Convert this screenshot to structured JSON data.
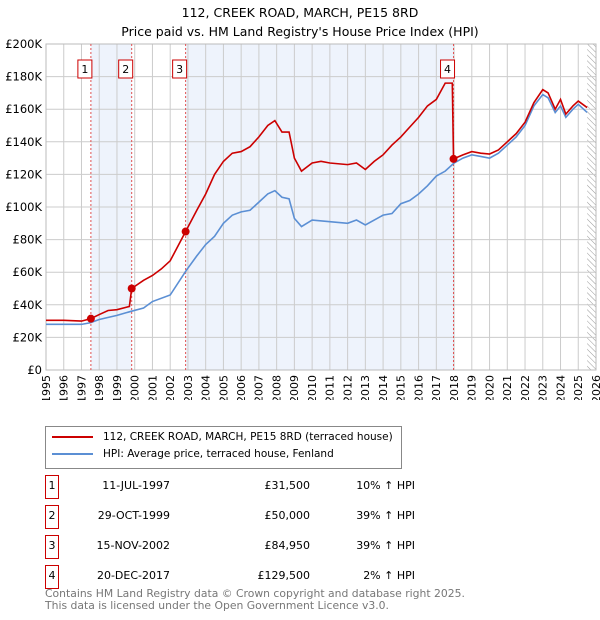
{
  "chart_data": {
    "type": "line",
    "title": "112, CREEK ROAD, MARCH, PE15 8RD",
    "subtitle": "Price paid vs. HM Land Registry's House Price Index (HPI)",
    "xlim": [
      1995,
      2026
    ],
    "ylim": [
      0,
      200000
    ],
    "x_ticks": [
      "1995",
      "1996",
      "1997",
      "1998",
      "1999",
      "2000",
      "2001",
      "2002",
      "2003",
      "2004",
      "2005",
      "2006",
      "2007",
      "2008",
      "2009",
      "2010",
      "2011",
      "2012",
      "2013",
      "2014",
      "2015",
      "2016",
      "2017",
      "2018",
      "2019",
      "2020",
      "2021",
      "2022",
      "2023",
      "2024",
      "2025",
      "2026"
    ],
    "y_ticks": [
      {
        "v": 0,
        "l": "£0"
      },
      {
        "v": 20000,
        "l": "£20K"
      },
      {
        "v": 40000,
        "l": "£40K"
      },
      {
        "v": 60000,
        "l": "£60K"
      },
      {
        "v": 80000,
        "l": "£80K"
      },
      {
        "v": 100000,
        "l": "£100K"
      },
      {
        "v": 120000,
        "l": "£120K"
      },
      {
        "v": 140000,
        "l": "£140K"
      },
      {
        "v": 160000,
        "l": "£160K"
      },
      {
        "v": 180000,
        "l": "£180K"
      },
      {
        "v": 200000,
        "l": "£200K"
      }
    ],
    "grid": true,
    "series": [
      {
        "name": "112, CREEK ROAD, MARCH, PE15 8RD (terraced house)",
        "color": "#cc0000",
        "points": [
          [
            1995,
            30500
          ],
          [
            1996,
            30500
          ],
          [
            1997,
            30000
          ],
          [
            1997.53,
            31500
          ],
          [
            1998,
            34000
          ],
          [
            1998.5,
            36500
          ],
          [
            1999,
            37000
          ],
          [
            1999.7,
            39000
          ],
          [
            1999.83,
            50000
          ],
          [
            2000.5,
            55000
          ],
          [
            2001,
            58000
          ],
          [
            2001.5,
            62000
          ],
          [
            2002,
            67000
          ],
          [
            2002.87,
            84950
          ],
          [
            2003.5,
            98000
          ],
          [
            2004,
            108000
          ],
          [
            2004.5,
            120000
          ],
          [
            2005,
            128000
          ],
          [
            2005.5,
            133000
          ],
          [
            2006,
            134000
          ],
          [
            2006.5,
            137000
          ],
          [
            2007,
            143000
          ],
          [
            2007.5,
            150000
          ],
          [
            2007.9,
            153000
          ],
          [
            2008.3,
            146000
          ],
          [
            2008.7,
            146000
          ],
          [
            2009,
            130000
          ],
          [
            2009.4,
            122000
          ],
          [
            2010,
            127000
          ],
          [
            2010.5,
            128000
          ],
          [
            2011,
            127000
          ],
          [
            2012,
            126000
          ],
          [
            2012.5,
            127000
          ],
          [
            2013,
            123000
          ],
          [
            2013.5,
            128000
          ],
          [
            2014,
            132000
          ],
          [
            2014.5,
            138000
          ],
          [
            2015,
            143000
          ],
          [
            2015.5,
            149000
          ],
          [
            2016,
            155000
          ],
          [
            2016.5,
            162000
          ],
          [
            2017,
            166000
          ],
          [
            2017.5,
            176000
          ],
          [
            2017.9,
            176000
          ],
          [
            2017.97,
            129500
          ],
          [
            2018.5,
            132000
          ],
          [
            2019,
            134000
          ],
          [
            2019.5,
            133000
          ],
          [
            2020,
            132500
          ],
          [
            2020.5,
            135000
          ],
          [
            2021,
            140000
          ],
          [
            2021.5,
            145000
          ],
          [
            2022,
            152000
          ],
          [
            2022.5,
            164000
          ],
          [
            2023,
            172000
          ],
          [
            2023.3,
            170000
          ],
          [
            2023.7,
            160000
          ],
          [
            2024,
            166000
          ],
          [
            2024.3,
            157000
          ],
          [
            2024.7,
            162000
          ],
          [
            2025,
            165000
          ],
          [
            2025.5,
            161000
          ]
        ]
      },
      {
        "name": "HPI: Average price, terraced house, Fenland",
        "color": "#5b8fd4",
        "points": [
          [
            1995,
            28000
          ],
          [
            1996,
            28000
          ],
          [
            1997,
            28000
          ],
          [
            1997.5,
            29000
          ],
          [
            1998,
            31000
          ],
          [
            1999,
            33500
          ],
          [
            1999.8,
            36000
          ],
          [
            2000.5,
            38000
          ],
          [
            2001,
            42000
          ],
          [
            2002,
            46000
          ],
          [
            2002.9,
            61000
          ],
          [
            2003.5,
            70000
          ],
          [
            2004,
            77000
          ],
          [
            2004.5,
            82000
          ],
          [
            2005,
            90000
          ],
          [
            2005.5,
            95000
          ],
          [
            2006,
            97000
          ],
          [
            2006.5,
            98000
          ],
          [
            2007,
            103000
          ],
          [
            2007.5,
            108000
          ],
          [
            2007.9,
            110000
          ],
          [
            2008.3,
            106000
          ],
          [
            2008.7,
            105000
          ],
          [
            2009,
            93000
          ],
          [
            2009.4,
            88000
          ],
          [
            2010,
            92000
          ],
          [
            2011,
            91000
          ],
          [
            2012,
            90000
          ],
          [
            2012.5,
            92000
          ],
          [
            2013,
            89000
          ],
          [
            2013.5,
            92000
          ],
          [
            2014,
            95000
          ],
          [
            2014.5,
            96000
          ],
          [
            2015,
            102000
          ],
          [
            2015.5,
            104000
          ],
          [
            2016,
            108000
          ],
          [
            2016.5,
            113000
          ],
          [
            2017,
            119000
          ],
          [
            2017.5,
            122000
          ],
          [
            2018,
            127000
          ],
          [
            2018.5,
            130000
          ],
          [
            2019,
            132000
          ],
          [
            2019.5,
            131000
          ],
          [
            2020,
            130000
          ],
          [
            2020.5,
            133000
          ],
          [
            2021,
            138000
          ],
          [
            2021.5,
            143000
          ],
          [
            2022,
            150000
          ],
          [
            2022.5,
            162000
          ],
          [
            2023,
            169000
          ],
          [
            2023.3,
            167000
          ],
          [
            2023.7,
            158000
          ],
          [
            2024,
            162000
          ],
          [
            2024.3,
            155000
          ],
          [
            2024.7,
            160000
          ],
          [
            2025,
            163000
          ],
          [
            2025.5,
            158000
          ]
        ]
      }
    ],
    "sales": [
      {
        "n": "1",
        "x": 1997.53,
        "y": 31500
      },
      {
        "n": "2",
        "x": 1999.83,
        "y": 50000
      },
      {
        "n": "3",
        "x": 2002.87,
        "y": 84950
      },
      {
        "n": "4",
        "x": 2017.97,
        "y": 129500
      }
    ],
    "shaded_ranges": [
      [
        1997.53,
        1999.83
      ],
      [
        2002.87,
        2017.97
      ]
    ],
    "forecast_from": 2025.5
  },
  "legend": {
    "red": "112, CREEK ROAD, MARCH, PE15 8RD (terraced house)",
    "blue": "HPI: Average price, terraced house, Fenland"
  },
  "table": [
    {
      "n": "1",
      "date": "11-JUL-1997",
      "price": "£31,500",
      "hpi": "10% ↑ HPI"
    },
    {
      "n": "2",
      "date": "29-OCT-1999",
      "price": "£50,000",
      "hpi": "39% ↑ HPI"
    },
    {
      "n": "3",
      "date": "15-NOV-2002",
      "price": "£84,950",
      "hpi": "39% ↑ HPI"
    },
    {
      "n": "4",
      "date": "20-DEC-2017",
      "price": "£129,500",
      "hpi": "2% ↑ HPI"
    }
  ],
  "footer": {
    "line1": "Contains HM Land Registry data © Crown copyright and database right 2025.",
    "line2": "This data is licensed under the Open Government Licence v3.0."
  }
}
